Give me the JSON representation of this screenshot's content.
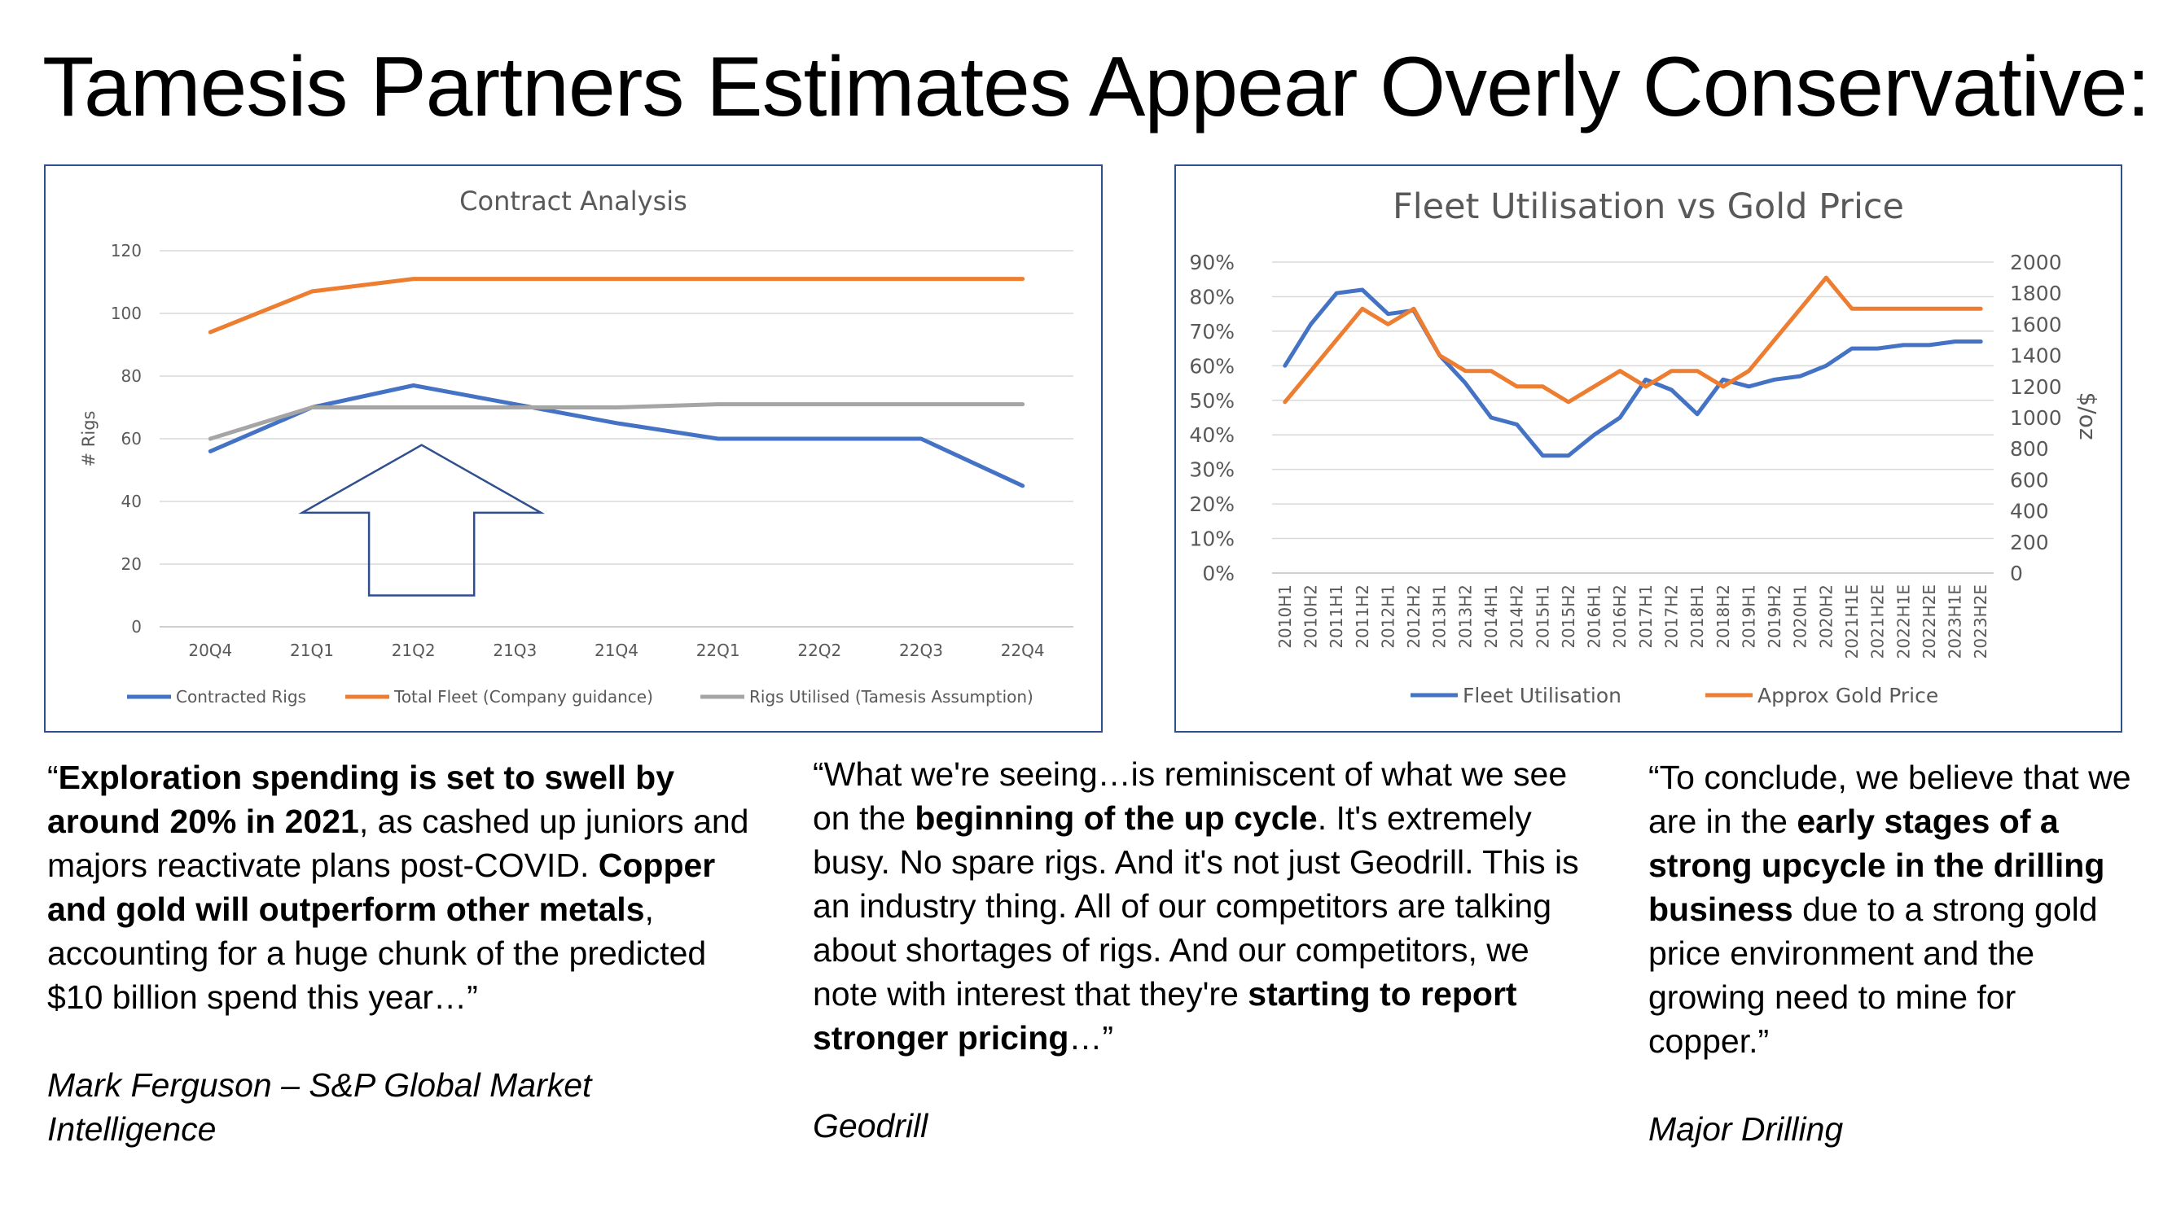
{
  "slide": {
    "title": "Tamesis Partners Estimates Appear Overly Conservative:"
  },
  "colors": {
    "blue": "#4472C4",
    "orange": "#ED7D31",
    "gray": "#A5A5A5",
    "frame": "#2F4F8F",
    "arrow": "#2F4F8F",
    "grid": "#D9D9D9"
  },
  "chart_data": [
    {
      "type": "line",
      "title": "Contract Analysis",
      "ylabel": "# Rigs",
      "xlabel": "",
      "categories": [
        "20Q4",
        "21Q1",
        "21Q2",
        "21Q3",
        "21Q4",
        "22Q1",
        "22Q2",
        "22Q3",
        "22Q4"
      ],
      "ylim": [
        0,
        120
      ],
      "yticks": [
        "0",
        "20",
        "40",
        "60",
        "80",
        "100",
        "120"
      ],
      "grid": true,
      "legend_position": "bottom",
      "series": [
        {
          "name": "Contracted Rigs",
          "color": "#4472C4",
          "values": [
            56,
            70,
            77,
            71,
            65,
            60,
            60,
            60,
            45
          ]
        },
        {
          "name": "Total Fleet (Company guidance)",
          "color": "#ED7D31",
          "values": [
            94,
            107,
            111,
            111,
            111,
            111,
            111,
            111,
            111
          ]
        },
        {
          "name": "Rigs Utilised (Tamesis Assumption)",
          "color": "#A5A5A5",
          "values": [
            60,
            70,
            70,
            70,
            70,
            71,
            71,
            71,
            71
          ]
        }
      ],
      "annotations": [
        {
          "type": "up-arrow",
          "category_range": [
            "21Q1",
            "21Q3"
          ],
          "y_range": [
            10,
            58
          ]
        }
      ]
    },
    {
      "type": "line",
      "title": "Fleet Utilisation vs Gold Price",
      "ylabel": "",
      "y2label": "$/oz",
      "xlabel": "",
      "categories": [
        "2010H1",
        "2010H2",
        "2011H1",
        "2011H2",
        "2012H1",
        "2012H2",
        "2013H1",
        "2013H2",
        "2014H1",
        "2014H2",
        "2015H1",
        "2015H2",
        "2016H1",
        "2016H2",
        "2017H1",
        "2017H2",
        "2018H1",
        "2018H2",
        "2019H1",
        "2019H2",
        "2020H1",
        "2020H2",
        "2021H1E",
        "2021H2E",
        "2022H1E",
        "2022H2E",
        "2023H1E",
        "2023H2E"
      ],
      "ylim": [
        0,
        90
      ],
      "yticks": [
        "0%",
        "10%",
        "20%",
        "30%",
        "40%",
        "50%",
        "60%",
        "70%",
        "80%",
        "90%"
      ],
      "y2lim": [
        0,
        2000
      ],
      "y2ticks": [
        "0",
        "200",
        "400",
        "600",
        "800",
        "1000",
        "1200",
        "1400",
        "1600",
        "1800",
        "2000"
      ],
      "grid": true,
      "legend_position": "bottom",
      "series": [
        {
          "name": "Fleet Utilisation",
          "axis": "left",
          "color": "#4472C4",
          "values": [
            60,
            72,
            81,
            82,
            75,
            76,
            63,
            55,
            45,
            43,
            34,
            34,
            40,
            45,
            56,
            53,
            46,
            56,
            54,
            56,
            57,
            60,
            65,
            65,
            66,
            66,
            67,
            67
          ]
        },
        {
          "name": "Approx Gold Price",
          "axis": "right",
          "color": "#ED7D31",
          "values": [
            1100,
            1300,
            1500,
            1700,
            1600,
            1700,
            1400,
            1300,
            1300,
            1200,
            1200,
            1100,
            1200,
            1300,
            1200,
            1300,
            1300,
            1200,
            1300,
            1500,
            1700,
            1900,
            1700,
            1700,
            1700,
            1700,
            1700,
            1700
          ]
        }
      ]
    }
  ],
  "quotes": [
    {
      "segments": [
        {
          "text": "“",
          "bold": false
        },
        {
          "text": "Exploration spending is set to swell by around 20% in 2021",
          "bold": true
        },
        {
          "text": ", as cashed up juniors and majors reactivate plans post-COVID. ",
          "bold": false
        },
        {
          "text": "Copper and gold will outperform other metals",
          "bold": true
        },
        {
          "text": ", accounting for a huge chunk of the predicted $10 billion spend this year…”",
          "bold": false
        }
      ],
      "attribution": "Mark Ferguson – S&P Global Market Intelligence"
    },
    {
      "segments": [
        {
          "text": "“What we're seeing…is reminiscent of what we see on the ",
          "bold": false
        },
        {
          "text": "beginning of the up cycle",
          "bold": true
        },
        {
          "text": ". It's extremely busy. No spare rigs. And it's not just Geodrill. This is an industry thing. All of our competitors are talking about shortages of rigs. And our competitors, we note with interest that they're ",
          "bold": false
        },
        {
          "text": "starting to report stronger pricing",
          "bold": true
        },
        {
          "text": "…”",
          "bold": false
        }
      ],
      "attribution": "Geodrill"
    },
    {
      "segments": [
        {
          "text": "“To conclude, we believe that we are in the ",
          "bold": false
        },
        {
          "text": "early stages of a strong upcycle in the drilling business",
          "bold": true
        },
        {
          "text": " due to a strong gold price environment and the growing need to mine for copper.”",
          "bold": false
        }
      ],
      "attribution": "Major Drilling"
    }
  ]
}
